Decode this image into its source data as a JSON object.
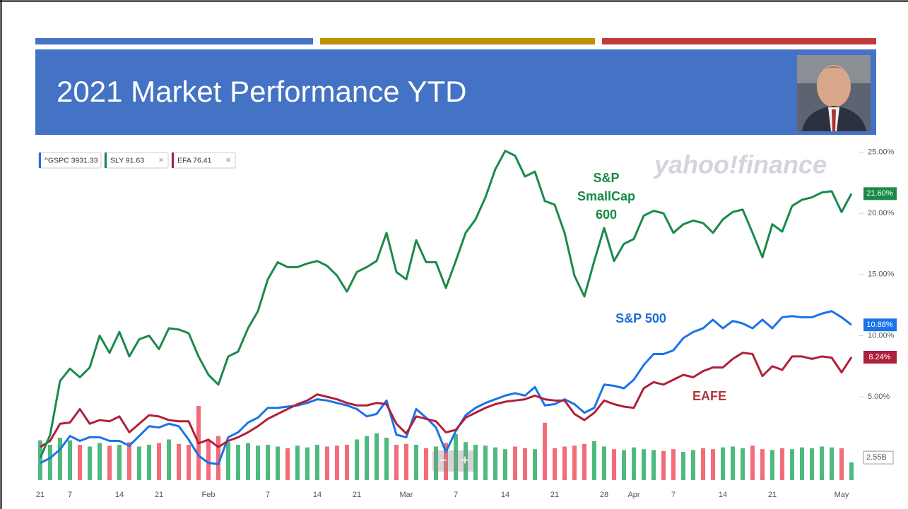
{
  "slide": {
    "title": "2021 Market Performance YTD"
  },
  "chart_data": {
    "type": "line",
    "watermark": "yahoo!finance",
    "categories": [
      "21",
      null,
      null,
      "7",
      null,
      null,
      null,
      null,
      "14",
      null,
      null,
      null,
      "21",
      null,
      null,
      null,
      null,
      "Feb",
      null,
      null,
      null,
      null,
      null,
      "7",
      null,
      null,
      null,
      null,
      "14",
      null,
      null,
      null,
      "21",
      null,
      null,
      null,
      null,
      "Mar",
      null,
      null,
      null,
      null,
      "7",
      null,
      null,
      null,
      null,
      "14",
      null,
      null,
      null,
      null,
      "21",
      null,
      null,
      null,
      null,
      "28",
      null,
      null,
      "Apr",
      null,
      null,
      null,
      "7",
      null,
      null,
      null,
      null,
      "14",
      null,
      null,
      null,
      null,
      "21",
      null,
      null,
      null,
      null,
      null,
      null,
      "May",
      null
    ],
    "series": [
      {
        "name": "SLY 91.63",
        "color": "#1a8a4a",
        "closable": true,
        "last_label": "21.60%",
        "values": [
          0.0,
          1.9,
          6.3,
          7.3,
          6.6,
          7.4,
          10.0,
          8.6,
          10.3,
          8.3,
          9.7,
          10.0,
          8.9,
          10.6,
          10.5,
          10.2,
          8.3,
          6.8,
          6.0,
          8.3,
          8.7,
          10.6,
          12.0,
          14.6,
          16.0,
          15.6,
          15.6,
          15.9,
          16.1,
          15.7,
          14.9,
          13.6,
          15.2,
          15.6,
          16.1,
          18.4,
          15.2,
          14.6,
          17.8,
          16.0,
          16.0,
          13.9,
          16.1,
          18.4,
          19.5,
          21.3,
          23.6,
          25.1,
          24.7,
          23.0,
          23.4,
          21.0,
          20.7,
          18.4,
          14.9,
          13.2,
          16.1,
          18.8,
          16.1,
          17.5,
          17.9,
          19.8,
          20.2,
          20.0,
          18.4,
          19.1,
          19.4,
          19.2,
          18.4,
          19.5,
          20.1,
          20.3,
          18.4,
          16.4,
          19.1,
          18.5,
          20.6,
          21.1,
          21.3,
          21.7,
          21.8,
          20.1,
          21.6
        ]
      },
      {
        "name": "^GSPC 3931.33",
        "color": "#1a73e8",
        "closable": false,
        "last_label": "10.88%",
        "values": [
          -0.4,
          0.0,
          0.7,
          1.8,
          1.4,
          1.7,
          1.7,
          1.4,
          1.4,
          1.0,
          1.8,
          2.6,
          2.5,
          2.8,
          2.6,
          1.5,
          0.2,
          -0.4,
          -0.5,
          1.7,
          2.1,
          2.9,
          3.3,
          4.1,
          4.1,
          4.2,
          4.3,
          4.5,
          4.8,
          4.7,
          4.5,
          4.3,
          4.0,
          3.4,
          3.6,
          4.7,
          1.9,
          1.7,
          4.0,
          3.3,
          2.5,
          0.5,
          2.2,
          3.5,
          4.1,
          4.5,
          4.8,
          5.1,
          5.3,
          5.1,
          5.8,
          4.3,
          4.4,
          4.8,
          4.4,
          3.7,
          4.1,
          6.0,
          5.9,
          5.7,
          6.4,
          7.6,
          8.5,
          8.5,
          8.8,
          9.8,
          10.3,
          10.6,
          11.3,
          10.6,
          11.2,
          11.0,
          10.6,
          11.3,
          10.6,
          11.5,
          11.6,
          11.5,
          11.5,
          11.8,
          12.0,
          11.5,
          10.88
        ]
      },
      {
        "name": "EFA 76.41",
        "color": "#b0203a",
        "closable": true,
        "last_label": "8.24%",
        "values": [
          0.9,
          1.4,
          2.8,
          2.9,
          4.0,
          2.8,
          3.1,
          3.0,
          3.4,
          2.1,
          2.8,
          3.5,
          3.4,
          3.1,
          3.0,
          3.0,
          1.2,
          1.5,
          0.9,
          1.4,
          1.7,
          2.1,
          2.6,
          3.2,
          3.6,
          4.0,
          4.4,
          4.7,
          5.2,
          5.0,
          4.8,
          4.5,
          4.3,
          4.3,
          4.5,
          4.4,
          2.8,
          2.0,
          3.4,
          3.2,
          3.0,
          2.1,
          2.3,
          3.3,
          3.7,
          4.1,
          4.4,
          4.6,
          4.7,
          4.8,
          5.1,
          4.8,
          4.7,
          4.7,
          3.6,
          3.1,
          3.7,
          4.7,
          4.4,
          4.2,
          4.1,
          5.7,
          6.2,
          6.0,
          6.4,
          6.8,
          6.6,
          7.1,
          7.4,
          7.4,
          8.1,
          8.6,
          8.5,
          6.7,
          7.5,
          7.2,
          8.3,
          8.3,
          8.1,
          8.3,
          8.2,
          7.0,
          8.24
        ]
      }
    ],
    "legend_order": [
      1,
      0,
      2
    ],
    "legend_close": "×",
    "volume": {
      "axis": "y2",
      "up_color": "#3cb371",
      "down_color": "#f25c6a",
      "values": [
        4.5,
        4.0,
        4.8,
        4.5,
        4.0,
        3.8,
        4.2,
        3.9,
        4.0,
        4.3,
        3.8,
        4.0,
        4.2,
        4.6,
        4.1,
        4.0,
        8.4,
        4.5,
        5.0,
        4.3,
        4.0,
        4.2,
        3.9,
        4.0,
        3.8,
        3.6,
        3.9,
        3.7,
        4.0,
        3.8,
        3.9,
        4.0,
        4.6,
        5.0,
        5.3,
        4.8,
        4.0,
        4.1,
        4.0,
        3.6,
        3.8,
        4.2,
        5.2,
        4.3,
        4.0,
        3.9,
        3.7,
        3.5,
        3.8,
        3.6,
        3.5,
        6.5,
        3.6,
        3.8,
        3.9,
        4.1,
        4.4,
        3.8,
        3.5,
        3.4,
        3.7,
        3.5,
        3.4,
        3.3,
        3.5,
        3.2,
        3.4,
        3.6,
        3.5,
        3.7,
        3.8,
        3.6,
        3.9,
        3.5,
        3.4,
        3.6,
        3.5,
        3.7,
        3.6,
        3.8,
        3.7,
        3.6,
        2.0
      ]
    },
    "ylim": [
      -1.8,
      25.6
    ],
    "yticks": [
      {
        "value": 25,
        "label": "25.00%"
      },
      {
        "value": 20,
        "label": "20.00%"
      },
      {
        "value": 15,
        "label": "15.00%"
      },
      {
        "value": 10,
        "label": "10.00%"
      },
      {
        "value": 5,
        "label": "5.00%"
      }
    ],
    "y2lim": [
      0,
      38
    ],
    "y2ticks": [
      {
        "value": 2.55,
        "label": "2.55B"
      }
    ],
    "grid": false,
    "annotations": [
      {
        "lines": [
          "S&P",
          "SmallCap",
          "600"
        ],
        "color": "#168a45"
      },
      {
        "lines": [
          "S&P 500"
        ],
        "color": "#1a6fd6"
      },
      {
        "lines": [
          "EAFE"
        ],
        "color": "#b5323a"
      }
    ],
    "zoom": {
      "minus": "−",
      "plus": "+"
    }
  }
}
